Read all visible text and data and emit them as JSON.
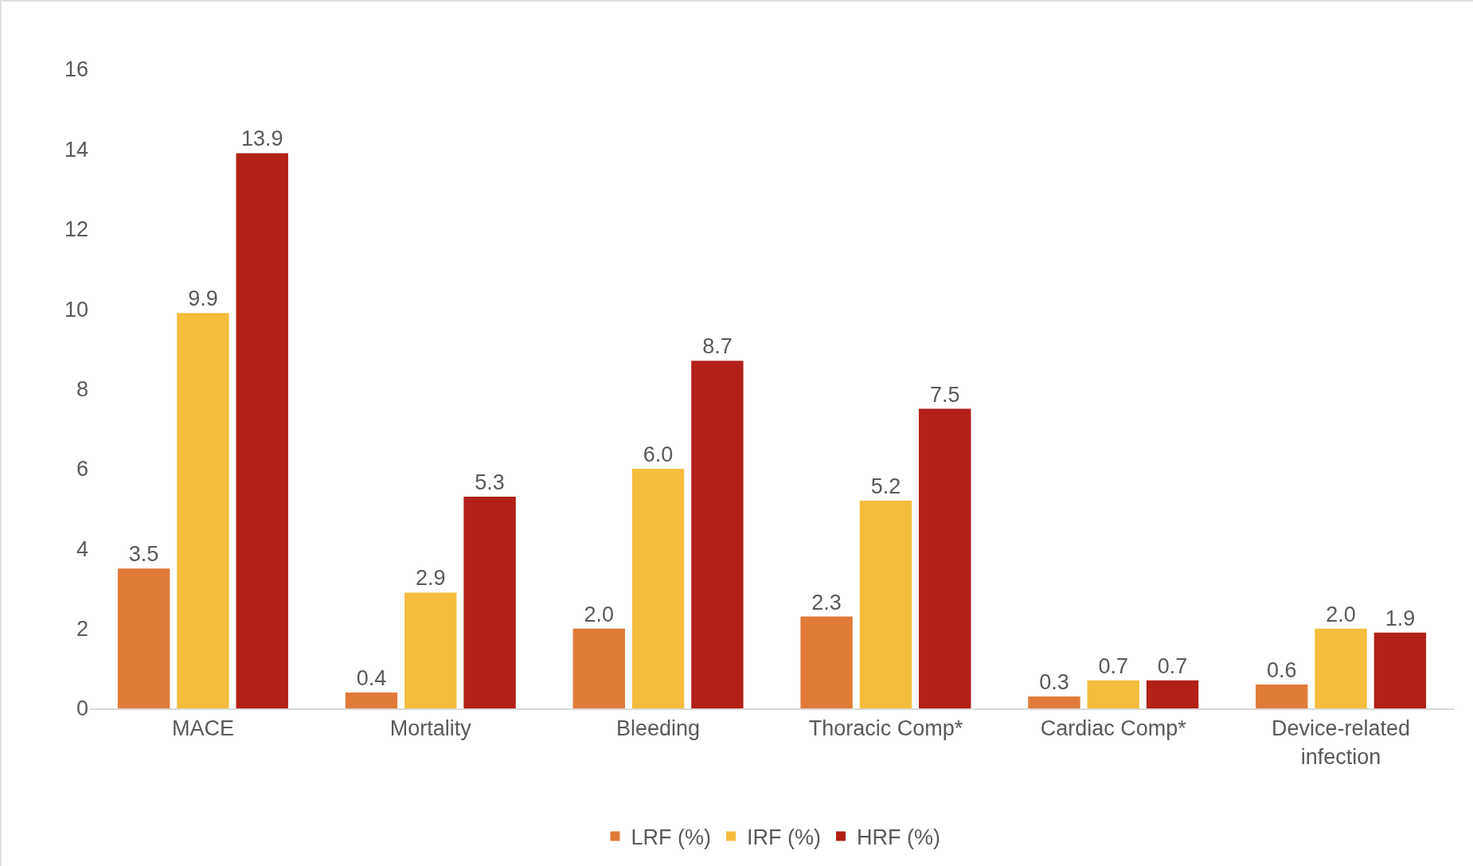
{
  "chart_data": {
    "type": "bar",
    "categories": [
      "MACE",
      "Mortality",
      "Bleeding",
      "Thoracic Comp*",
      "Cardiac Comp*",
      "Device-related infection"
    ],
    "series": [
      {
        "name": "LRF (%)",
        "color": "#e07b39",
        "values": [
          3.5,
          0.4,
          2.0,
          2.3,
          0.3,
          0.6
        ],
        "value_labels": [
          "3.5",
          "0.4",
          "2.0",
          "2.3",
          "0.3",
          "0.6"
        ]
      },
      {
        "name": "IRF (%)",
        "color": "#f5bd3c",
        "values": [
          9.9,
          2.9,
          6.0,
          5.2,
          0.7,
          2.0
        ],
        "value_labels": [
          "9.9",
          "2.9",
          "6.0",
          "5.2",
          "0.7",
          "2.0"
        ]
      },
      {
        "name": "HRF (%)",
        "color": "#b22018",
        "values": [
          13.9,
          5.3,
          8.7,
          7.5,
          0.7,
          1.9
        ],
        "value_labels": [
          "13.9",
          "5.3",
          "8.7",
          "7.5",
          "0.7",
          "1.9"
        ]
      }
    ],
    "ylim": [
      0,
      16
    ],
    "yticks": [
      0,
      2,
      4,
      6,
      8,
      10,
      12,
      14,
      16
    ],
    "grid": false,
    "legend": "bottom"
  }
}
